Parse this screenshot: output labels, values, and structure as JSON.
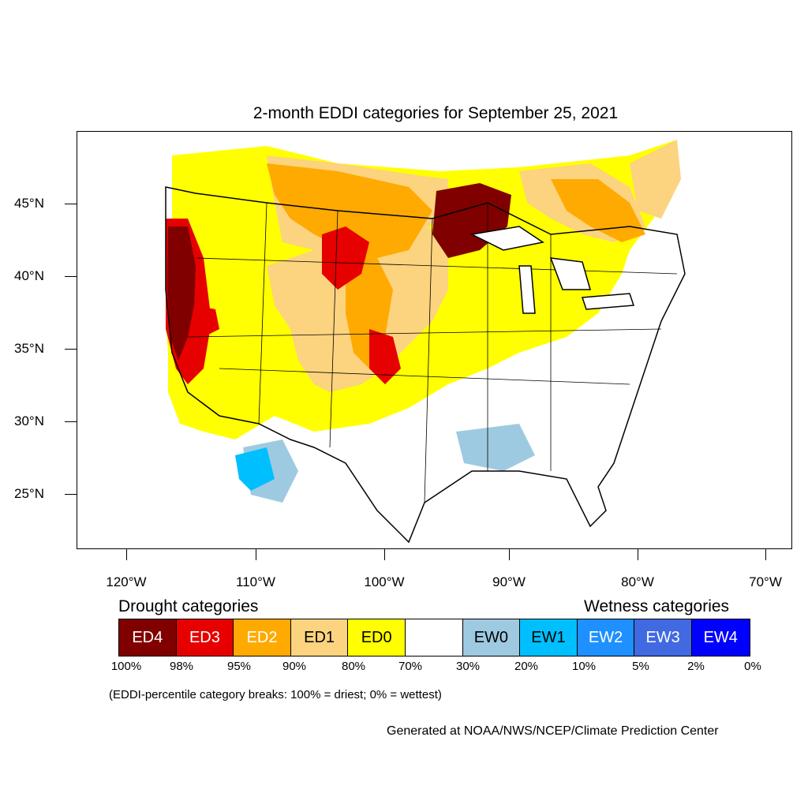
{
  "title": "2-month EDDI categories for September 25, 2021",
  "axes": {
    "lat_labels": [
      "45°N",
      "40°N",
      "35°N",
      "30°N",
      "25°N"
    ],
    "lon_labels": [
      "120°W",
      "110°W",
      "100°W",
      "90°W",
      "80°W",
      "70°W"
    ]
  },
  "legend": {
    "drought_heading": "Drought categories",
    "wetness_heading": "Wetness categories",
    "categories": [
      {
        "label": "ED4",
        "color": "#800000",
        "text_color": "#ffffff"
      },
      {
        "label": "ED3",
        "color": "#e60000",
        "text_color": "#ffffff"
      },
      {
        "label": "ED2",
        "color": "#ffaa00",
        "text_color": "#ffffff"
      },
      {
        "label": "ED1",
        "color": "#fcd37f",
        "text_color": "#000000"
      },
      {
        "label": "ED0",
        "color": "#ffff00",
        "text_color": "#000000"
      },
      {
        "label": "",
        "color": "#ffffff",
        "text_color": "#000000"
      },
      {
        "label": "EW0",
        "color": "#9ecae1",
        "text_color": "#000000"
      },
      {
        "label": "EW1",
        "color": "#00bfff",
        "text_color": "#000000"
      },
      {
        "label": "EW2",
        "color": "#1e90ff",
        "text_color": "#ffffff"
      },
      {
        "label": "EW3",
        "color": "#4169e1",
        "text_color": "#ffffff"
      },
      {
        "label": "EW4",
        "color": "#0000ff",
        "text_color": "#ffffff"
      }
    ],
    "percent_breaks": [
      "100%",
      "98%",
      "95%",
      "90%",
      "80%",
      "70%",
      "30%",
      "20%",
      "10%",
      "5%",
      "2%",
      "0%"
    ]
  },
  "note": "(EDDI-percentile category breaks: 100% = driest; 0% = wettest)",
  "credit": "Generated at NOAA/NWS/NCEP/Climate Prediction Center"
}
